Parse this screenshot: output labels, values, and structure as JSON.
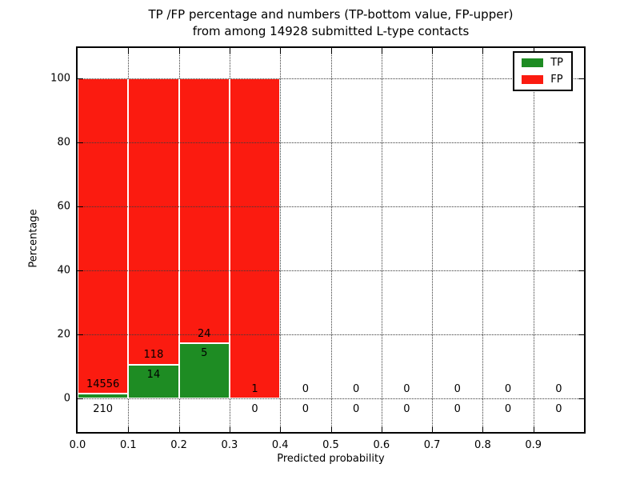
{
  "figure": {
    "title_line1": "TP /FP percentage and numbers (TP-bottom value, FP-upper)",
    "title_line2": "from among 14928 submitted L-type contacts",
    "total_submitted": "14928"
  },
  "chart_data": {
    "type": "bar",
    "stacked": true,
    "title": "TP /FP percentage and numbers (TP-bottom value, FP-upper) from among 14928 submitted L-type contacts",
    "xlabel": "Predicted probability",
    "ylabel": "Percentage",
    "xlim": [
      0.0,
      1.0
    ],
    "ylim": [
      -10.5,
      109.5
    ],
    "bin_edges": [
      0.0,
      0.1,
      0.2,
      0.3,
      0.4,
      0.5,
      0.6,
      0.7,
      0.8,
      0.9,
      1.0
    ],
    "categories": [
      "0.0-0.1",
      "0.1-0.2",
      "0.2-0.3",
      "0.3-0.4",
      "0.4-0.5",
      "0.5-0.6",
      "0.6-0.7",
      "0.7-0.8",
      "0.8-0.9",
      "0.9-1.0"
    ],
    "series": [
      {
        "name": "TP",
        "color": "#1e8c23",
        "counts": [
          210,
          14,
          5,
          0,
          0,
          0,
          0,
          0,
          0,
          0
        ],
        "percent": [
          1.42,
          10.61,
          17.24,
          0,
          0,
          0,
          0,
          0,
          0,
          0
        ]
      },
      {
        "name": "FP",
        "color": "#fb1b10",
        "counts": [
          14556,
          118,
          24,
          1,
          0,
          0,
          0,
          0,
          0,
          0
        ],
        "percent": [
          98.58,
          89.39,
          82.76,
          100,
          0,
          0,
          0,
          0,
          0,
          0
        ]
      }
    ],
    "x_ticks": [
      0.0,
      0.1,
      0.2,
      0.3,
      0.4,
      0.5,
      0.6,
      0.7,
      0.8,
      0.9
    ],
    "x_tick_labels": [
      "0.0",
      "0.1",
      "0.2",
      "0.3",
      "0.4",
      "0.5",
      "0.6",
      "0.7",
      "0.8",
      "0.9"
    ],
    "y_ticks": [
      0,
      20,
      40,
      60,
      80,
      100
    ],
    "y_tick_labels": [
      "0",
      "20",
      "40",
      "60",
      "80",
      "100"
    ],
    "grid": true,
    "legend": {
      "position": "upper right",
      "entries": [
        {
          "label": "TP",
          "color": "#1e8c23"
        },
        {
          "label": "FP",
          "color": "#fb1b10"
        }
      ]
    }
  }
}
